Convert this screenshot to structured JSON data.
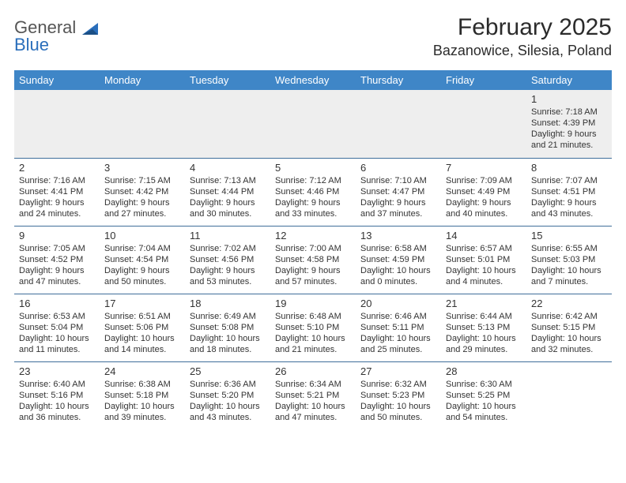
{
  "logo": {
    "word1": "General",
    "word2": "Blue"
  },
  "header": {
    "month": "February 2025",
    "location": "Bazanowice, Silesia, Poland"
  },
  "colors": {
    "header_bg": "#3f86c7",
    "header_fg": "#ffffff",
    "row_border": "#3f6e9a",
    "first_row_bg": "#eeeeee",
    "logo_accent": "#2a6ebb"
  },
  "dayHeaders": [
    "Sunday",
    "Monday",
    "Tuesday",
    "Wednesday",
    "Thursday",
    "Friday",
    "Saturday"
  ],
  "weeks": [
    [
      null,
      null,
      null,
      null,
      null,
      null,
      {
        "n": "1",
        "sr": "7:18 AM",
        "ss": "4:39 PM",
        "dl": "9 hours and 21 minutes."
      }
    ],
    [
      {
        "n": "2",
        "sr": "7:16 AM",
        "ss": "4:41 PM",
        "dl": "9 hours and 24 minutes."
      },
      {
        "n": "3",
        "sr": "7:15 AM",
        "ss": "4:42 PM",
        "dl": "9 hours and 27 minutes."
      },
      {
        "n": "4",
        "sr": "7:13 AM",
        "ss": "4:44 PM",
        "dl": "9 hours and 30 minutes."
      },
      {
        "n": "5",
        "sr": "7:12 AM",
        "ss": "4:46 PM",
        "dl": "9 hours and 33 minutes."
      },
      {
        "n": "6",
        "sr": "7:10 AM",
        "ss": "4:47 PM",
        "dl": "9 hours and 37 minutes."
      },
      {
        "n": "7",
        "sr": "7:09 AM",
        "ss": "4:49 PM",
        "dl": "9 hours and 40 minutes."
      },
      {
        "n": "8",
        "sr": "7:07 AM",
        "ss": "4:51 PM",
        "dl": "9 hours and 43 minutes."
      }
    ],
    [
      {
        "n": "9",
        "sr": "7:05 AM",
        "ss": "4:52 PM",
        "dl": "9 hours and 47 minutes."
      },
      {
        "n": "10",
        "sr": "7:04 AM",
        "ss": "4:54 PM",
        "dl": "9 hours and 50 minutes."
      },
      {
        "n": "11",
        "sr": "7:02 AM",
        "ss": "4:56 PM",
        "dl": "9 hours and 53 minutes."
      },
      {
        "n": "12",
        "sr": "7:00 AM",
        "ss": "4:58 PM",
        "dl": "9 hours and 57 minutes."
      },
      {
        "n": "13",
        "sr": "6:58 AM",
        "ss": "4:59 PM",
        "dl": "10 hours and 0 minutes."
      },
      {
        "n": "14",
        "sr": "6:57 AM",
        "ss": "5:01 PM",
        "dl": "10 hours and 4 minutes."
      },
      {
        "n": "15",
        "sr": "6:55 AM",
        "ss": "5:03 PM",
        "dl": "10 hours and 7 minutes."
      }
    ],
    [
      {
        "n": "16",
        "sr": "6:53 AM",
        "ss": "5:04 PM",
        "dl": "10 hours and 11 minutes."
      },
      {
        "n": "17",
        "sr": "6:51 AM",
        "ss": "5:06 PM",
        "dl": "10 hours and 14 minutes."
      },
      {
        "n": "18",
        "sr": "6:49 AM",
        "ss": "5:08 PM",
        "dl": "10 hours and 18 minutes."
      },
      {
        "n": "19",
        "sr": "6:48 AM",
        "ss": "5:10 PM",
        "dl": "10 hours and 21 minutes."
      },
      {
        "n": "20",
        "sr": "6:46 AM",
        "ss": "5:11 PM",
        "dl": "10 hours and 25 minutes."
      },
      {
        "n": "21",
        "sr": "6:44 AM",
        "ss": "5:13 PM",
        "dl": "10 hours and 29 minutes."
      },
      {
        "n": "22",
        "sr": "6:42 AM",
        "ss": "5:15 PM",
        "dl": "10 hours and 32 minutes."
      }
    ],
    [
      {
        "n": "23",
        "sr": "6:40 AM",
        "ss": "5:16 PM",
        "dl": "10 hours and 36 minutes."
      },
      {
        "n": "24",
        "sr": "6:38 AM",
        "ss": "5:18 PM",
        "dl": "10 hours and 39 minutes."
      },
      {
        "n": "25",
        "sr": "6:36 AM",
        "ss": "5:20 PM",
        "dl": "10 hours and 43 minutes."
      },
      {
        "n": "26",
        "sr": "6:34 AM",
        "ss": "5:21 PM",
        "dl": "10 hours and 47 minutes."
      },
      {
        "n": "27",
        "sr": "6:32 AM",
        "ss": "5:23 PM",
        "dl": "10 hours and 50 minutes."
      },
      {
        "n": "28",
        "sr": "6:30 AM",
        "ss": "5:25 PM",
        "dl": "10 hours and 54 minutes."
      },
      null
    ]
  ],
  "labels": {
    "sunrise": "Sunrise: ",
    "sunset": "Sunset: ",
    "daylight": "Daylight: "
  }
}
